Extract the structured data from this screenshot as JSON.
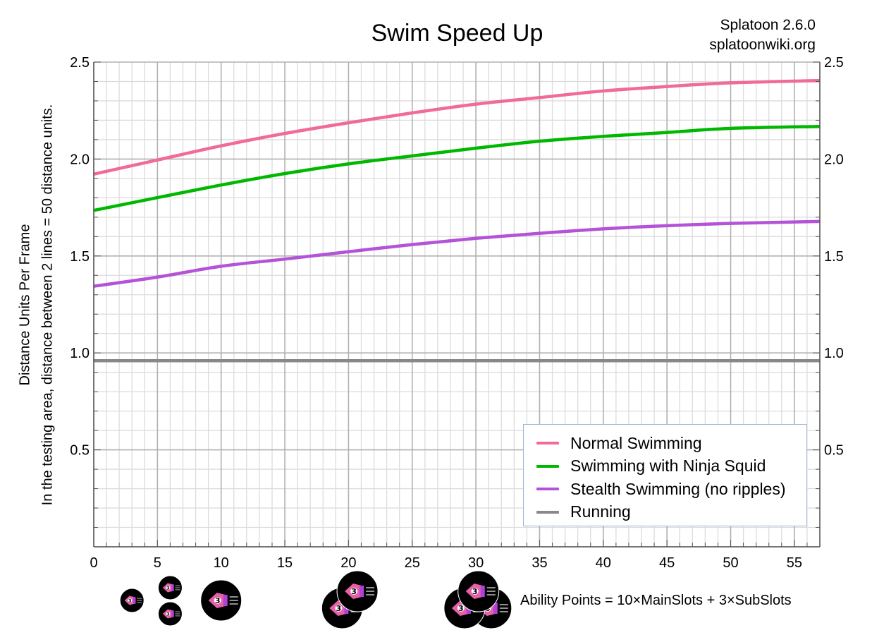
{
  "title": "Swim Speed Up",
  "source": {
    "line1": "Splatoon 2.6.0",
    "line2": "splatoonwiki.org"
  },
  "ylabel": {
    "line1": "Distance Units Per Frame",
    "line2": "In the testing area, distance between 2 lines = 50 distance units."
  },
  "ability_note": "Ability Points = 10×MainSlots + 3×SubSlots",
  "legend": [
    {
      "label": "Normal Swimming",
      "color": "#f06a9a"
    },
    {
      "label": "Swimming with Ninja Squid",
      "color": "#00b800"
    },
    {
      "label": "Stealth Swimming (no ripples)",
      "color": "#b452d8"
    },
    {
      "label": "Running",
      "color": "#888888"
    }
  ],
  "ability_icons": [
    {
      "x": 3,
      "row": "mid",
      "size": "small",
      "label": "1 sub"
    },
    {
      "x": 6,
      "row": "top",
      "size": "small",
      "label": "2 subs"
    },
    {
      "x": 6,
      "row": "bottom",
      "size": "small",
      "label": "2 subs"
    },
    {
      "x": 10,
      "row": "mid",
      "size": "large",
      "label": "1 main"
    },
    {
      "x": 20,
      "row": "stack2",
      "size": "large",
      "label": "2 mains"
    },
    {
      "x": 30,
      "row": "stack3",
      "size": "large",
      "label": "3 mains"
    }
  ],
  "chart_data": {
    "type": "line",
    "title": "Swim Speed Up",
    "xlabel": "Ability Points",
    "ylabel": "Distance Units Per Frame",
    "xlim": [
      0,
      57
    ],
    "ylim": [
      0,
      2.5
    ],
    "x_ticks": [
      0,
      5,
      10,
      15,
      20,
      25,
      30,
      35,
      40,
      45,
      50,
      55
    ],
    "y_ticks": [
      0.5,
      1.0,
      1.5,
      2.0,
      2.5
    ],
    "y_tick_labels": [
      "0.5",
      "1.0",
      "1.5",
      "2.0",
      "2.5"
    ],
    "grid": {
      "minor_x_step": 1,
      "major_x_step": 5,
      "minor_y_step": 0.1,
      "major_y_step": 0.5
    },
    "legend_position": "lower right",
    "x": [
      0,
      5,
      10,
      15,
      20,
      25,
      30,
      35,
      40,
      45,
      50,
      57
    ],
    "series": [
      {
        "name": "Normal Swimming",
        "color": "#f06a9a",
        "values": [
          1.922,
          1.995,
          2.068,
          2.132,
          2.187,
          2.238,
          2.283,
          2.317,
          2.351,
          2.374,
          2.393,
          2.405
        ]
      },
      {
        "name": "Swimming with Ninja Squid",
        "color": "#00b800",
        "values": [
          1.735,
          1.801,
          1.866,
          1.925,
          1.975,
          2.016,
          2.056,
          2.092,
          2.117,
          2.137,
          2.158,
          2.168
        ]
      },
      {
        "name": "Stealth Swimming (no ripples)",
        "color": "#b452d8",
        "values": [
          1.344,
          1.391,
          1.447,
          1.484,
          1.522,
          1.559,
          1.591,
          1.617,
          1.64,
          1.656,
          1.668,
          1.678
        ]
      },
      {
        "name": "Running",
        "color": "#888888",
        "values": [
          0.96,
          0.96,
          0.96,
          0.96,
          0.96,
          0.96,
          0.96,
          0.96,
          0.96,
          0.96,
          0.96,
          0.96
        ]
      }
    ]
  }
}
